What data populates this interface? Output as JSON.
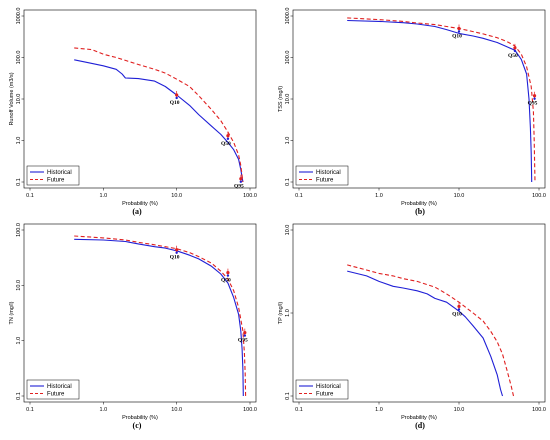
{
  "chart_data": [
    {
      "panel": "(a)",
      "type": "line",
      "xlabel": "Probability (%)",
      "ylabel": "Runoff Volume (m3/s)",
      "xscale": "log",
      "yscale": "log",
      "xlim": [
        0.1,
        100
      ],
      "ylim": [
        0.1,
        1000
      ],
      "xticks": [
        "0.1",
        "1.0",
        "10.0",
        "100.0"
      ],
      "yticks": [
        "0.1",
        "1.0",
        "10.0",
        "100.0",
        "1000.0"
      ],
      "series": [
        {
          "name": "Historical",
          "color": "#1f1fd6",
          "style": "solid",
          "x": [
            0.4,
            0.6,
            1.0,
            1.5,
            1.8,
            2.0,
            3.0,
            5.0,
            7.0,
            10.0,
            15.0,
            20.0,
            30.0,
            40.0,
            50.0,
            60.0,
            70.0,
            75.0,
            80.0
          ],
          "y": [
            88,
            76,
            63,
            52,
            40,
            32,
            31,
            27,
            20,
            12.5,
            7,
            4.2,
            2.2,
            1.4,
            0.9,
            0.6,
            0.35,
            0.2,
            0.1
          ]
        },
        {
          "name": "Future",
          "color": "#e02020",
          "style": "dashed",
          "x": [
            0.4,
            0.7,
            1.0,
            1.5,
            2.0,
            3.0,
            5.0,
            7.0,
            10.0,
            15.0,
            20.0,
            30.0,
            40.0,
            50.0,
            60.0,
            70.0,
            75.0,
            80.0
          ],
          "y": [
            170,
            155,
            120,
            100,
            85,
            68,
            52,
            42,
            30,
            20,
            12,
            5.5,
            3.0,
            1.6,
            0.9,
            0.45,
            0.25,
            0.1
          ]
        }
      ],
      "annotations": [
        {
          "text": "Q10",
          "x": 10,
          "y": 12.5,
          "marker_series": "both"
        },
        {
          "text": "Q50",
          "x": 50,
          "y": 1.3,
          "marker_series": "both"
        },
        {
          "text": "Q95",
          "x": 75,
          "y": 0.12,
          "marker_series": "both"
        }
      ],
      "legend": {
        "position": "bottom-left",
        "entries": [
          "Historical",
          "Future"
        ]
      }
    },
    {
      "panel": "(b)",
      "type": "line",
      "xlabel": "Probability (%)",
      "ylabel": "TSS (mg/l)",
      "xscale": "log",
      "yscale": "log",
      "xlim": [
        0.1,
        100
      ],
      "ylim": [
        0.1,
        1000
      ],
      "xticks": [
        "0.1",
        "1.0",
        "10.0",
        "100.0"
      ],
      "yticks": [
        "0.1",
        "1.0",
        "10.0",
        "100.0",
        "1000.0"
      ],
      "series": [
        {
          "name": "Historical",
          "color": "#1f1fd6",
          "style": "solid",
          "x": [
            0.4,
            1.0,
            2.0,
            3.0,
            5.0,
            7.0,
            10.0,
            15.0,
            20.0,
            30.0,
            40.0,
            50.0,
            60.0,
            70.0,
            75.0,
            78.0,
            80.0,
            80.5,
            81.0
          ],
          "y": [
            780,
            740,
            690,
            640,
            560,
            470,
            380,
            330,
            290,
            230,
            180,
            150,
            90,
            40,
            10,
            2,
            0.5,
            0.2,
            0.1
          ]
        },
        {
          "name": "Future",
          "color": "#e02020",
          "style": "dashed",
          "x": [
            0.4,
            1.0,
            2.0,
            3.0,
            5.0,
            7.0,
            10.0,
            15.0,
            20.0,
            30.0,
            40.0,
            50.0,
            60.0,
            70.0,
            80.0,
            85.0,
            87.0,
            88.0,
            89.0
          ],
          "y": [
            900,
            820,
            740,
            680,
            620,
            560,
            500,
            420,
            370,
            300,
            240,
            190,
            120,
            60,
            20,
            5,
            1,
            0.3,
            0.1
          ]
        }
      ],
      "annotations": [
        {
          "text": "Q10",
          "x": 10,
          "y": 500,
          "marker_series": "both"
        },
        {
          "text": "Q50",
          "x": 50,
          "y": 170,
          "marker_series": "both"
        },
        {
          "text": "Q95",
          "x": 88,
          "y": 12,
          "marker_series": "both"
        }
      ],
      "legend": {
        "position": "bottom-left",
        "entries": [
          "Historical",
          "Future"
        ]
      }
    },
    {
      "panel": "(c)",
      "type": "line",
      "xlabel": "Probability (%)",
      "ylabel": "TN (mg/l)",
      "xscale": "log",
      "yscale": "log",
      "xlim": [
        0.1,
        100
      ],
      "ylim": [
        0.1,
        100
      ],
      "xticks": [
        "0.1",
        "1.0",
        "10.0",
        "100.0"
      ],
      "yticks": [
        "0.1",
        "1.0",
        "10.0",
        "100.0"
      ],
      "series": [
        {
          "name": "Historical",
          "color": "#1f1fd6",
          "style": "solid",
          "x": [
            0.4,
            1.0,
            2.0,
            3.0,
            5.0,
            7.0,
            10.0,
            15.0,
            20.0,
            30.0,
            40.0,
            50.0,
            60.0,
            70.0,
            75.0,
            78.0,
            80.0,
            81.0
          ],
          "y": [
            68,
            66,
            62,
            56,
            50,
            47,
            42,
            35,
            30,
            22,
            16,
            11,
            6,
            3,
            1.5,
            0.7,
            0.3,
            0.1
          ]
        },
        {
          "name": "Future",
          "color": "#e02020",
          "style": "dashed",
          "x": [
            0.4,
            1.0,
            2.0,
            3.0,
            5.0,
            7.0,
            10.0,
            15.0,
            20.0,
            30.0,
            40.0,
            50.0,
            60.0,
            70.0,
            80.0,
            84.0,
            86.0,
            87.0
          ],
          "y": [
            78,
            72,
            66,
            60,
            54,
            50,
            46,
            39,
            33,
            25,
            18,
            13,
            8,
            4,
            1.5,
            0.6,
            0.25,
            0.1
          ]
        }
      ],
      "annotations": [
        {
          "text": "Q10",
          "x": 10,
          "y": 44,
          "marker_series": "both"
        },
        {
          "text": "Q50",
          "x": 50,
          "y": 17,
          "marker_series": "both"
        },
        {
          "text": "Q95",
          "x": 85,
          "y": 1.4,
          "marker_series": "both"
        }
      ],
      "legend": {
        "position": "bottom-left",
        "entries": [
          "Historical",
          "Future"
        ]
      }
    },
    {
      "panel": "(d)",
      "type": "line",
      "xlabel": "Probability (%)",
      "ylabel": "TP (mg/l)",
      "xscale": "log",
      "yscale": "log",
      "xlim": [
        0.1,
        100
      ],
      "ylim": [
        0.1,
        10
      ],
      "xticks": [
        "0.1",
        "1.0",
        "10.0",
        "100.0"
      ],
      "yticks": [
        "0.1",
        "1.0",
        "10.0"
      ],
      "series": [
        {
          "name": "Historical",
          "color": "#1f1fd6",
          "style": "solid",
          "x": [
            0.4,
            0.7,
            1.0,
            1.5,
            2.0,
            3.0,
            4.0,
            5.0,
            7.0,
            10.0,
            12.0,
            15.0,
            20.0,
            25.0,
            30.0,
            33.0,
            35.0
          ],
          "y": [
            3.2,
            2.8,
            2.4,
            2.1,
            2.0,
            1.85,
            1.7,
            1.5,
            1.35,
            1.05,
            0.9,
            0.7,
            0.5,
            0.3,
            0.18,
            0.12,
            0.1
          ]
        },
        {
          "name": "Future",
          "color": "#e02020",
          "style": "dashed",
          "x": [
            0.4,
            0.7,
            1.0,
            1.5,
            2.0,
            3.0,
            5.0,
            7.0,
            10.0,
            15.0,
            20.0,
            25.0,
            30.0,
            35.0,
            40.0,
            45.0,
            48.0
          ],
          "y": [
            3.8,
            3.3,
            3.0,
            2.8,
            2.6,
            2.4,
            2.05,
            1.7,
            1.35,
            1.0,
            0.8,
            0.6,
            0.45,
            0.32,
            0.2,
            0.13,
            0.1
          ]
        }
      ],
      "annotations": [
        {
          "text": "Q10",
          "x": 10,
          "y": 1.2,
          "marker_series": "both"
        }
      ],
      "legend": {
        "position": "bottom-left",
        "entries": [
          "Historical",
          "Future"
        ]
      }
    }
  ]
}
